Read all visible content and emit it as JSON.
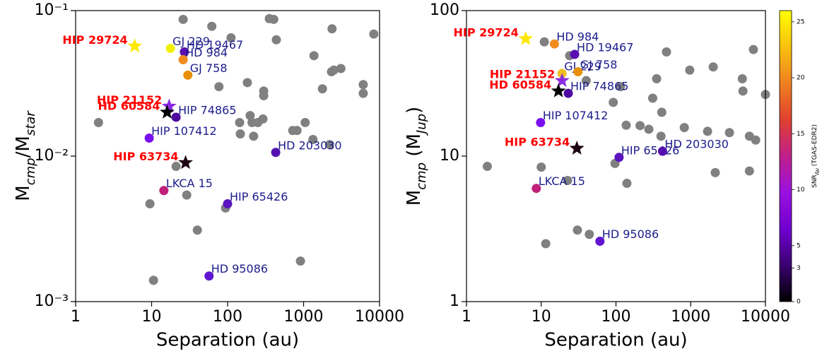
{
  "chart_data": [
    {
      "type": "scatter",
      "xscale": "log",
      "yscale": "log",
      "xlabel": "Separation (au)",
      "ylabel": [
        "M",
        "cmp",
        "/M",
        "star"
      ],
      "xlim": [
        1,
        10000
      ],
      "ylim": [
        0.001,
        0.1
      ],
      "xticks": [
        1,
        10,
        100,
        1000,
        10000
      ],
      "yticks": [
        {
          "value": 0.001,
          "label": "10⁻³"
        },
        {
          "value": 0.01,
          "label": "10⁻²"
        },
        {
          "value": 0.1,
          "label": "10⁻¹"
        }
      ],
      "label_color": "#1c1c8c",
      "star_label_color": "#ff0000",
      "gray": {
        "color": "#808080",
        "x": [
          2.0,
          9.5,
          10.6,
          21,
          29,
          26,
          62,
          111,
          354,
          405,
          438,
          2370,
          2330,
          2500,
          3100,
          6100,
          6100,
          8400,
          1370,
          1770,
          77,
          182,
          299,
          299,
          292,
          198,
          210,
          250,
          144,
          147,
          220,
          720,
          820,
          1050,
          1330,
          2200,
          94,
          40,
          910
        ],
        "y": [
          0.017,
          0.0047,
          0.0014,
          0.0085,
          0.0054,
          0.087,
          0.078,
          0.065,
          0.088,
          0.087,
          0.063,
          0.075,
          0.038,
          0.039,
          0.04,
          0.031,
          0.027,
          0.069,
          0.049,
          0.029,
          0.03,
          0.032,
          0.028,
          0.026,
          0.018,
          0.019,
          0.017,
          0.017,
          0.017,
          0.0142,
          0.0137,
          0.015,
          0.015,
          0.017,
          0.013,
          0.012,
          0.0044,
          0.0031,
          0.0019
        ]
      },
      "labeled": [
        {
          "label": "HIP 29724",
          "x": 6.0,
          "y": 0.057,
          "color": "#ffe800",
          "marker": "star"
        },
        {
          "label": "GJ 229",
          "x": 17.7,
          "y": 0.055,
          "color": "#f0f000",
          "marker": "circle"
        },
        {
          "label": "HD 19467",
          "x": 27,
          "y": 0.052,
          "color": "#5a10b0",
          "marker": "circle"
        },
        {
          "label": "HD 984",
          "x": 26,
          "y": 0.046,
          "color": "#f08c1e",
          "marker": "circle"
        },
        {
          "label": "GJ 758",
          "x": 30,
          "y": 0.036,
          "color": "#e8900a",
          "marker": "circle"
        },
        {
          "label": "HIP 21152",
          "x": 17,
          "y": 0.022,
          "color": "#8a2be2",
          "marker": "star"
        },
        {
          "label": "HD 60584",
          "x": 16,
          "y": 0.02,
          "color": "#000000",
          "marker": "star"
        },
        {
          "label": "HIP 74865",
          "x": 21,
          "y": 0.0185,
          "color": "#4c0aa0",
          "marker": "circle"
        },
        {
          "label": "HIP 107412",
          "x": 9.3,
          "y": 0.0133,
          "color": "#7a10f0",
          "marker": "circle"
        },
        {
          "label": "HD 203030",
          "x": 430,
          "y": 0.0106,
          "color": "#5510b0",
          "marker": "circle"
        },
        {
          "label": "HIP 63734",
          "x": 28,
          "y": 0.009,
          "color": "#1a0010",
          "marker": "star"
        },
        {
          "label": "LKCA 15",
          "x": 14.5,
          "y": 0.0058,
          "color": "#c0207a",
          "marker": "circle"
        },
        {
          "label": "HIP 65426",
          "x": 100,
          "y": 0.0047,
          "color": "#5b14c0",
          "marker": "circle"
        },
        {
          "label": "HD 95086",
          "x": 57,
          "y": 0.0015,
          "color": "#6015d0",
          "marker": "circle"
        }
      ]
    },
    {
      "type": "scatter",
      "xscale": "log",
      "yscale": "log",
      "xlabel": "Separation (au)",
      "ylabel": [
        "M",
        "cmp",
        " (M",
        "Jup",
        ")"
      ],
      "xlim": [
        1,
        10000
      ],
      "ylim": [
        1,
        100
      ],
      "xticks": [
        1,
        10,
        100,
        1000,
        10000
      ],
      "yticks": [
        1,
        10,
        100
      ],
      "label_color": "#1c1c8c",
      "star_label_color": "#ff0000",
      "gray": {
        "color": "#808080",
        "x": [
          1.9,
          10,
          11.5,
          22.5,
          30.5,
          44,
          11,
          24,
          474,
          6900,
          970,
          2000,
          4900,
          5000,
          350,
          310,
          410,
          92,
          115,
          137,
          210,
          275,
          400,
          820,
          1680,
          3300,
          6100,
          7400,
          2130,
          6100,
          97,
          140,
          10000,
          40
        ],
        "y": [
          8.5,
          8.4,
          2.5,
          6.8,
          3.1,
          2.9,
          61,
          49,
          52,
          54,
          39,
          41,
          34,
          28,
          34,
          25,
          20,
          23.4,
          30,
          16.3,
          16.2,
          15.3,
          13.7,
          15.7,
          14.8,
          14.5,
          13.7,
          12.9,
          7.7,
          7.9,
          8.9,
          6.5,
          26.5,
          33
        ]
      },
      "labeled": [
        {
          "label": "HIP 29724",
          "x": 6.2,
          "y": 64,
          "color": "#ffe800",
          "marker": "star"
        },
        {
          "label": "HD 984",
          "x": 15,
          "y": 59,
          "color": "#f08c1e",
          "marker": "circle"
        },
        {
          "label": "HD 19467",
          "x": 28,
          "y": 50,
          "color": "#5a10b0",
          "marker": "circle"
        },
        {
          "label": "GJ 229",
          "x": 19,
          "y": 37,
          "color": "#f0c020",
          "marker": "circle"
        },
        {
          "label": "GJ 758",
          "x": 31,
          "y": 38,
          "color": "#e8900a",
          "marker": "circle"
        },
        {
          "label": "HIP 21152",
          "x": 19,
          "y": 33,
          "color": "#8a2be2",
          "marker": "star"
        },
        {
          "label": "HD 60584",
          "x": 17,
          "y": 28,
          "color": "#000000",
          "marker": "star"
        },
        {
          "label": "HIP 74865",
          "x": 23,
          "y": 27,
          "color": "#4c0aa0",
          "marker": "circle"
        },
        {
          "label": "HIP 107412",
          "x": 9.8,
          "y": 17,
          "color": "#7a10f0",
          "marker": "circle"
        },
        {
          "label": "HIP 63734",
          "x": 30,
          "y": 11.3,
          "color": "#1a0010",
          "marker": "star"
        },
        {
          "label": "HIP 65426",
          "x": 110,
          "y": 9.8,
          "color": "#5b14c0",
          "marker": "circle"
        },
        {
          "label": "HD 203030",
          "x": 420,
          "y": 10.8,
          "color": "#5510b0",
          "marker": "circle"
        },
        {
          "label": "LKCA 15",
          "x": 8.6,
          "y": 6.0,
          "color": "#c0207a",
          "marker": "circle"
        },
        {
          "label": "HD 95086",
          "x": 61,
          "y": 2.6,
          "color": "#6015d0",
          "marker": "circle"
        }
      ],
      "colorbar": {
        "label": [
          "SNR",
          "Δμ",
          " (TGAS-EDR2)"
        ],
        "ylim": [
          0,
          26
        ],
        "yticks": [
          0,
          3,
          5,
          10,
          15,
          20,
          25
        ],
        "colors": [
          "#000000",
          "#3a0070",
          "#7000d0",
          "#9a10e0",
          "#c0208a",
          "#e04030",
          "#f08020",
          "#f8c010",
          "#ffff00"
        ]
      }
    }
  ]
}
